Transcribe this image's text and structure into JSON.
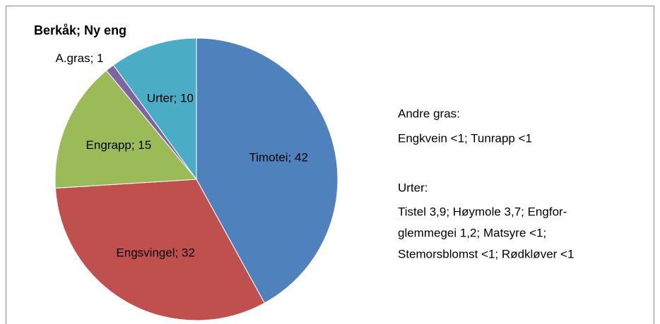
{
  "chart_data": {
    "type": "pie",
    "title": "Berkåk; Ny eng",
    "values": [
      42,
      32,
      15,
      1,
      10
    ],
    "value_labels": [
      "Timotei; 42",
      "Engsvingel; 32",
      "Engrapp; 15",
      "A.gras; 1",
      "Urter; 10"
    ],
    "colors": [
      "#4f81bd",
      "#c0504d",
      "#9bbb59",
      "#8064a2",
      "#4bacc6"
    ],
    "annotations": [
      "Andre gras:",
      "Engkvein <1; Tunrapp <1",
      "Urter:",
      "Tistel 3,9; Høymole 3,7; Engfor-",
      "glemmegei 1,2; Matsyre <1;",
      "Stemorsblomst <1; Rødkløver <1"
    ]
  }
}
